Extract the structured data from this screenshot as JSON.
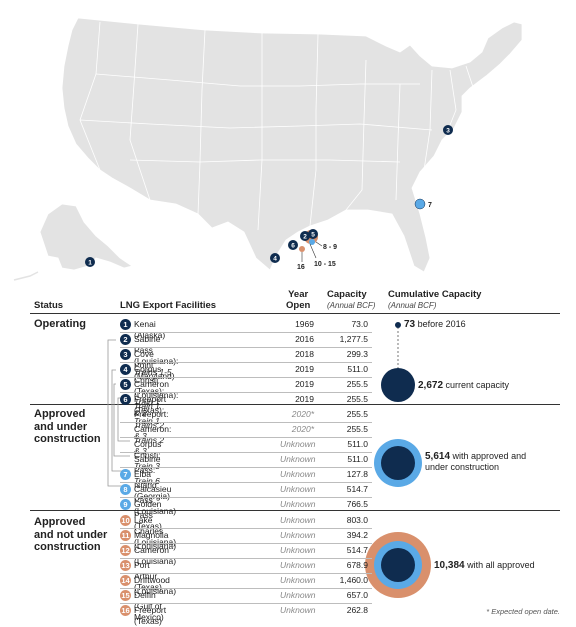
{
  "map": {
    "labels": {
      "m1": "1",
      "m3": "3",
      "m7": "7",
      "m4": "4",
      "m6": "6",
      "m16": "16",
      "m2": "2",
      "m5": "5",
      "m89": "8 - 9",
      "m1015": "10 - 15"
    }
  },
  "header": {
    "status": "Status",
    "facilities": "LNG Export Facilities",
    "year_line1": "Year",
    "year_line2": "Open",
    "capacity": "Capacity",
    "capacity_unit": "(Annual BCF)",
    "cumulative": "Cumulative Capacity",
    "cumulative_unit": "(Annual BCF)"
  },
  "groups": {
    "operating": "Operating",
    "approved_under_line1": "Approved",
    "approved_under_line2": "and under",
    "approved_under_line3": "construction",
    "approved_not_line1": "Approved",
    "approved_not_line2": "and not under",
    "approved_not_line3": "construction"
  },
  "rows": [
    {
      "num": "1",
      "name": "Kenai (Alaska)",
      "sub": "",
      "year": "1969",
      "cap": "73.0",
      "group": "op"
    },
    {
      "num": "2",
      "name": "Sabine Pass (Louisiana): ",
      "sub": "Trains 1-5",
      "year": "2016",
      "cap": "1,277.5",
      "group": "op"
    },
    {
      "num": "3",
      "name": "Cove Point (Maryland)",
      "sub": "",
      "year": "2018",
      "cap": "299.3",
      "group": "op"
    },
    {
      "num": "4",
      "name": "Corpus Christi (Texas): ",
      "sub": "Train 1 & 2",
      "year": "2019",
      "cap": "511.0",
      "group": "op"
    },
    {
      "num": "5",
      "name": "Cameron (Louisiana): ",
      "sub": "Train 1",
      "year": "2019",
      "cap": "255.5",
      "group": "op"
    },
    {
      "num": "6",
      "name": "Freeport (Texas): ",
      "sub": "Train 1",
      "year": "2019",
      "cap": "255.5",
      "group": "op"
    },
    {
      "num": "",
      "name": "Freeport: ",
      "sub": "Trains 2 & 3",
      "year": "2020*",
      "cap": "255.5",
      "group": "au"
    },
    {
      "num": "",
      "name": "Cameron: ",
      "sub": "Trains 2 & 3",
      "year": "2020*",
      "cap": "255.5",
      "group": "au"
    },
    {
      "num": "",
      "name": "Corpus Christi: ",
      "sub": "Train 3",
      "year": "Unknown",
      "cap": "511.0",
      "group": "au"
    },
    {
      "num": "",
      "name": "Sabine Pass: ",
      "sub": "Train 6",
      "year": "Unknown",
      "cap": "511.0",
      "group": "au"
    },
    {
      "num": "7",
      "name": "Elba Island (Georgia)",
      "sub": "",
      "year": "Unknown",
      "cap": "127.8",
      "group": "au"
    },
    {
      "num": "8",
      "name": "Calcasieu Pass (Louisiana)",
      "sub": "",
      "year": "Unknown",
      "cap": "514.7",
      "group": "au"
    },
    {
      "num": "9",
      "name": "Golden Pass (Texas)",
      "sub": "",
      "year": "Unknown",
      "cap": "766.5",
      "group": "au"
    },
    {
      "num": "10",
      "name": "Lake Charles (Louisiana)",
      "sub": "",
      "year": "Unknown",
      "cap": "803.0",
      "group": "an"
    },
    {
      "num": "11",
      "name": "Magnolia (Louisiana)",
      "sub": "",
      "year": "Unknown",
      "cap": "394.2",
      "group": "an"
    },
    {
      "num": "12",
      "name": "Cameron (Louisiana)",
      "sub": "",
      "year": "Unknown",
      "cap": "514.7",
      "group": "an"
    },
    {
      "num": "13",
      "name": "Port Arthur (Texas)",
      "sub": "",
      "year": "Unknown",
      "cap": "678.9",
      "group": "an"
    },
    {
      "num": "14",
      "name": "Driftwood (Louisiana)",
      "sub": "",
      "year": "Unknown",
      "cap": "1,460.0",
      "group": "an"
    },
    {
      "num": "15",
      "name": "Delfin (Gulf of Mexico)",
      "sub": "",
      "year": "Unknown",
      "cap": "657.0",
      "group": "an"
    },
    {
      "num": "16",
      "name": "Freeport (Texas)",
      "sub": "",
      "year": "Unknown",
      "cap": "262.8",
      "group": "an"
    }
  ],
  "cumulative": [
    {
      "value": "73",
      "text": " before 2016"
    },
    {
      "value": "2,672",
      "text": " current capacity"
    },
    {
      "value": "5,614",
      "text": " with approved and",
      "text2": "under construction"
    },
    {
      "value": "10,384",
      "text": " with all approved"
    }
  ],
  "colors": {
    "operating": "#0f2c4f",
    "approved_under": "#5aa9e6",
    "approved_not": "#d9906c",
    "land": "#e3e3e3"
  },
  "footnote": "* Expected open date."
}
